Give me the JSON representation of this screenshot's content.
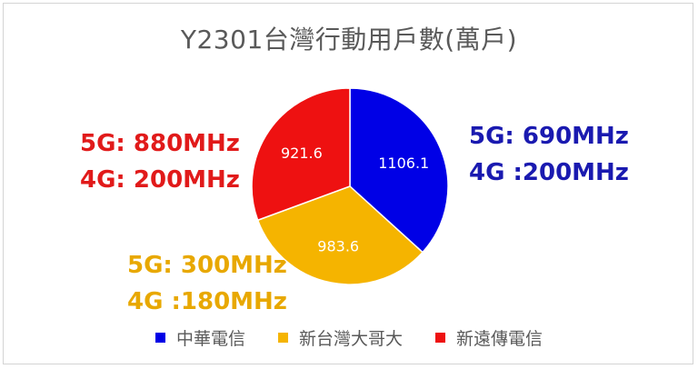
{
  "chart_data": {
    "type": "pie",
    "title": "Y2301台灣行動用戶數(萬戶)",
    "slices": [
      {
        "label": "中華電信",
        "value": 1106.1,
        "value_label": "1106.1",
        "color": "#0000e6"
      },
      {
        "label": "新台灣大哥大",
        "value": 983.6,
        "value_label": "983.6",
        "color": "#f5b400"
      },
      {
        "label": "新遠傳電信",
        "value": 921.6,
        "value_label": "921.6",
        "color": "#ee1111"
      }
    ],
    "start_angle_deg": 0,
    "direction": "clockwise",
    "legend_position": "bottom",
    "annotations": {
      "red": [
        "5G: 880MHz",
        "4G: 200MHz"
      ],
      "blue": [
        "5G: 690MHz",
        "4G :200MHz"
      ],
      "orange": [
        "5G: 300MHz",
        "4G :180MHz"
      ]
    }
  }
}
